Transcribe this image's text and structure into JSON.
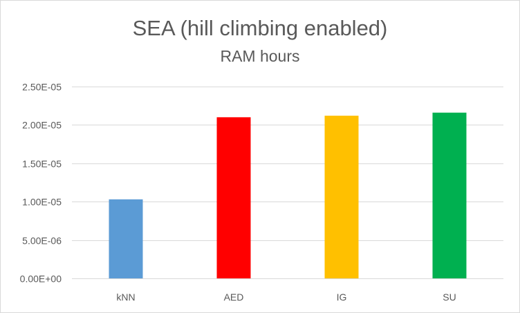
{
  "chart_data": {
    "type": "bar",
    "title": "SEA (hill climbing enabled)",
    "subtitle": "RAM hours",
    "xlabel": "",
    "ylabel": "",
    "categories": [
      "kNN",
      "AED",
      "IG",
      "SU"
    ],
    "values": [
      1.03e-05,
      2.1e-05,
      2.12e-05,
      2.16e-05
    ],
    "colors": [
      "#5b9bd5",
      "#ff0000",
      "#ffc000",
      "#00b050"
    ],
    "ylim": [
      0,
      2.5e-05
    ],
    "yticks": [
      {
        "value": 0,
        "label": "0.00E+00"
      },
      {
        "value": 5e-06,
        "label": "5.00E-06"
      },
      {
        "value": 1e-05,
        "label": "1.00E-05"
      },
      {
        "value": 1.5e-05,
        "label": "1.50E-05"
      },
      {
        "value": 2e-05,
        "label": "2.00E-05"
      },
      {
        "value": 2.5e-05,
        "label": "2.50E-05"
      }
    ],
    "grid": true,
    "legend": "none"
  }
}
